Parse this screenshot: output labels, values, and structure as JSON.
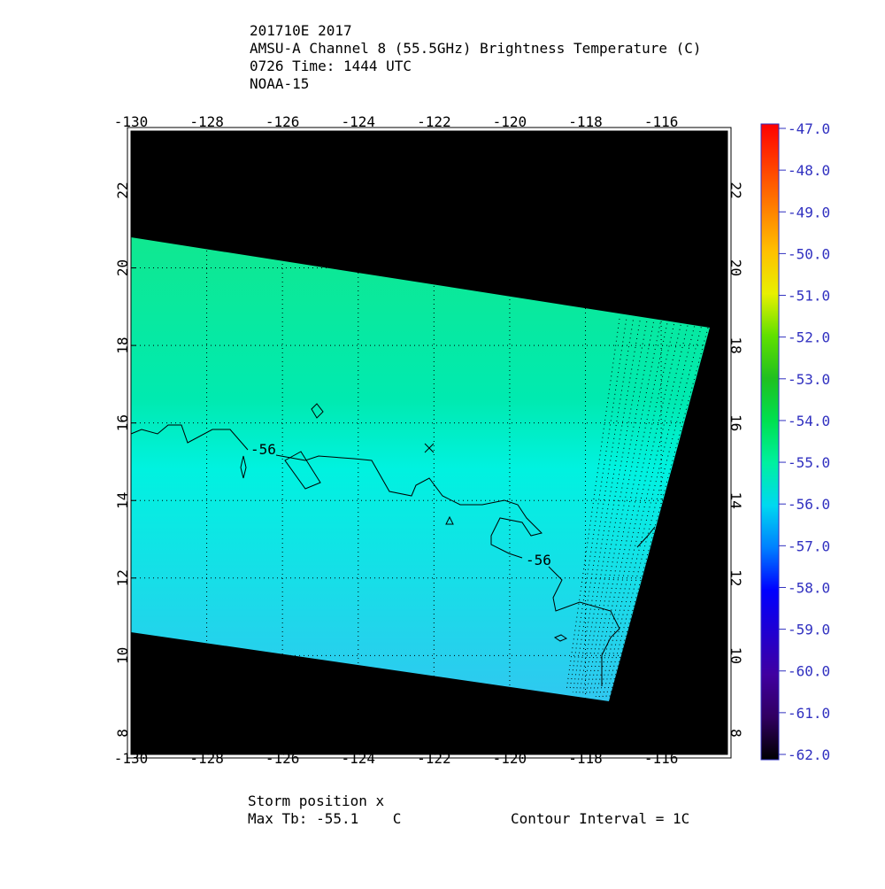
{
  "header": {
    "lines": [
      "201710E 2017",
      "AMSU-A Channel 8 (55.5GHz) Brightness Temperature (C)",
      "0726 Time: 1444 UTC",
      "NOAA-15"
    ]
  },
  "map": {
    "xlim": [
      -130,
      -114.25
    ],
    "ylim": [
      7.45,
      23.53
    ],
    "xticks": [
      -130,
      -128,
      -126,
      -124,
      -122,
      -120,
      -118,
      -116
    ],
    "yticks": [
      8,
      10,
      12,
      14,
      16,
      18,
      20,
      22
    ],
    "grid": true,
    "contour_labels": [
      "-56",
      "-56"
    ]
  },
  "colorbar": {
    "lim": [
      -62,
      -47
    ],
    "ticks": [
      {
        "value": -47,
        "label": "-47.0"
      },
      {
        "value": -48,
        "label": "-48.0"
      },
      {
        "value": -49,
        "label": "-49.0"
      },
      {
        "value": -50,
        "label": "-50.0"
      },
      {
        "value": -51,
        "label": "-51.0"
      },
      {
        "value": -52,
        "label": "-52.0"
      },
      {
        "value": -53,
        "label": "-53.0"
      },
      {
        "value": -54,
        "label": "-54.0"
      },
      {
        "value": -55,
        "label": "-55.0"
      },
      {
        "value": -56,
        "label": "-56.0"
      },
      {
        "value": -57,
        "label": "-57.0"
      },
      {
        "value": -58,
        "label": "-58.0"
      },
      {
        "value": -59,
        "label": "-59.0"
      },
      {
        "value": -60,
        "label": "-60.0"
      },
      {
        "value": -61,
        "label": "-61.0"
      },
      {
        "value": -62,
        "label": "-62.0"
      }
    ],
    "colors": [
      "#ff0000",
      "#ff4000",
      "#ff8000",
      "#ffc000",
      "#e8f000",
      "#60e000",
      "#20c020",
      "#00e050",
      "#00f0a0",
      "#00d8f0",
      "#0080ff",
      "#0000ff",
      "#2000d0",
      "#4000a0",
      "#300060",
      "#000000"
    ]
  },
  "footer": {
    "storm": "Storm position x",
    "max_tb": "Max Tb: -55.1    C",
    "interval": "Contour Interval = 1C"
  }
}
